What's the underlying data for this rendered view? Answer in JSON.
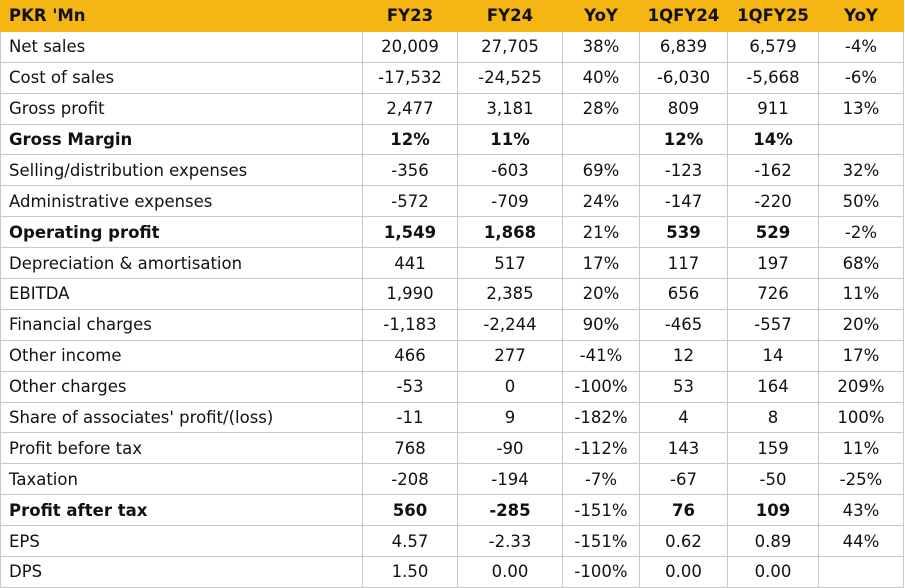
{
  "header": {
    "label": "PKR 'Mn",
    "cols": [
      "FY23",
      "FY24",
      "YoY",
      "1QFY24",
      "1QFY25",
      "YoY"
    ]
  },
  "rows": [
    {
      "label": "Net sales",
      "values": [
        "20,009",
        "27,705",
        "38%",
        "6,839",
        "6,579",
        "-4%"
      ],
      "bold": false
    },
    {
      "label": "Cost of sales",
      "values": [
        "-17,532",
        "-24,525",
        "40%",
        "-6,030",
        "-5,668",
        "-6%"
      ],
      "bold": false
    },
    {
      "label": "Gross profit",
      "values": [
        "2,477",
        "3,181",
        "28%",
        "809",
        "911",
        "13%"
      ],
      "bold": false
    },
    {
      "label": "Gross Margin",
      "values": [
        "12%",
        "11%",
        "",
        "12%",
        "14%",
        ""
      ],
      "bold": true
    },
    {
      "label": "Selling/distribution expenses",
      "values": [
        "-356",
        "-603",
        "69%",
        "-123",
        "-162",
        "32%"
      ],
      "bold": false
    },
    {
      "label": "Administrative expenses",
      "values": [
        "-572",
        "-709",
        "24%",
        "-147",
        "-220",
        "50%"
      ],
      "bold": false
    },
    {
      "label": "Operating profit",
      "values": [
        "1,549",
        "1,868",
        "21%",
        "539",
        "529",
        "-2%"
      ],
      "bold": true
    },
    {
      "label": "Depreciation & amortisation",
      "values": [
        "441",
        "517",
        "17%",
        "117",
        "197",
        "68%"
      ],
      "bold": false
    },
    {
      "label": "EBITDA",
      "values": [
        "1,990",
        "2,385",
        "20%",
        "656",
        "726",
        "11%"
      ],
      "bold": false
    },
    {
      "label": "Financial charges",
      "values": [
        "-1,183",
        "-2,244",
        "90%",
        "-465",
        "-557",
        "20%"
      ],
      "bold": false
    },
    {
      "label": "Other income",
      "values": [
        "466",
        "277",
        "-41%",
        "12",
        "14",
        "17%"
      ],
      "bold": false
    },
    {
      "label": "Other charges",
      "values": [
        "-53",
        "0",
        "-100%",
        "53",
        "164",
        "209%"
      ],
      "bold": false
    },
    {
      "label": "Share of associates' profit/(loss)",
      "values": [
        "-11",
        "9",
        "-182%",
        "4",
        "8",
        "100%"
      ],
      "bold": false
    },
    {
      "label": "Profit before tax",
      "values": [
        "768",
        "-90",
        "-112%",
        "143",
        "159",
        "11%"
      ],
      "bold": false
    },
    {
      "label": "Taxation",
      "values": [
        "-208",
        "-194",
        "-7%",
        "-67",
        "-50",
        "-25%"
      ],
      "bold": false
    },
    {
      "label": "Profit after tax",
      "values": [
        "560",
        "-285",
        "-151%",
        "76",
        "109",
        "43%"
      ],
      "bold": true
    },
    {
      "label": "EPS",
      "values": [
        "4.57",
        "-2.33",
        "-151%",
        "0.62",
        "0.89",
        "44%"
      ],
      "bold": false
    },
    {
      "label": "DPS",
      "values": [
        "1.50",
        "0.00",
        "-100%",
        "0.00",
        "0.00",
        ""
      ],
      "bold": false
    }
  ],
  "colors": {
    "header_bg": "#f5b512",
    "grid": "#c8c8c8"
  }
}
